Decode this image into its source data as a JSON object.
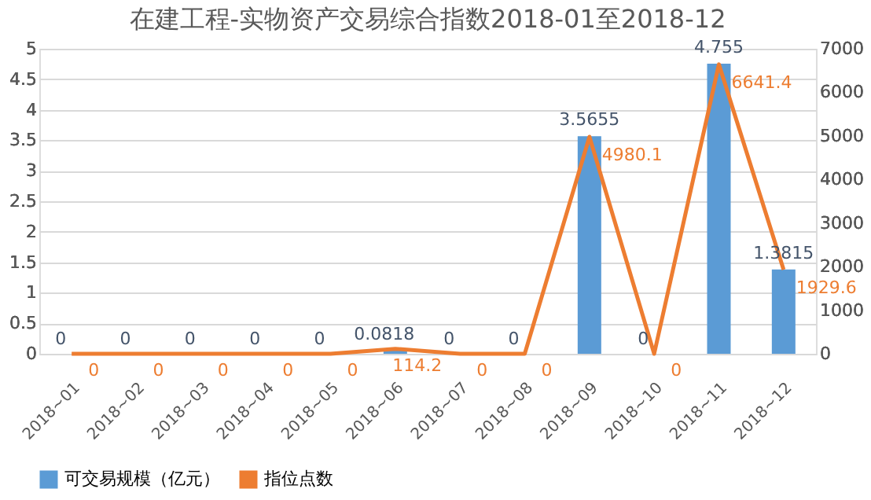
{
  "chart_data": {
    "type": "bar",
    "title": "在建工程-实物资产交易综合指数2018-01至2018-12",
    "categories": [
      "2018~01",
      "2018~02",
      "2018~03",
      "2018~04",
      "2018~05",
      "2018~06",
      "2018~07",
      "2018~08",
      "2018~09",
      "2018~10",
      "2018~11",
      "2018~12"
    ],
    "series": [
      {
        "name": "可交易规模（亿元）",
        "color": "#5b9bd5",
        "values": [
          0,
          0,
          0,
          0,
          0,
          0.0818,
          0,
          0,
          3.5655,
          0,
          4.755,
          1.3815
        ]
      },
      {
        "name": "指位点数",
        "type": "line",
        "axis": "y2",
        "color": "#ed7d31",
        "values": [
          0,
          0,
          0,
          0,
          0,
          114.2,
          0,
          0,
          4980.1,
          0,
          6641.4,
          1929.6
        ]
      }
    ],
    "ylim": [
      0,
      5
    ],
    "yticks": [
      0,
      0.5,
      1,
      1.5,
      2,
      2.5,
      3,
      3.5,
      4,
      4.5,
      5
    ],
    "y2lim": [
      0,
      7000
    ],
    "y2ticks": [
      0,
      1000,
      2000,
      3000,
      4000,
      5000,
      6000,
      7000
    ],
    "grid": "y",
    "legend": "bottom",
    "data_labels": true,
    "marker": "none",
    "line_style": "solid"
  }
}
